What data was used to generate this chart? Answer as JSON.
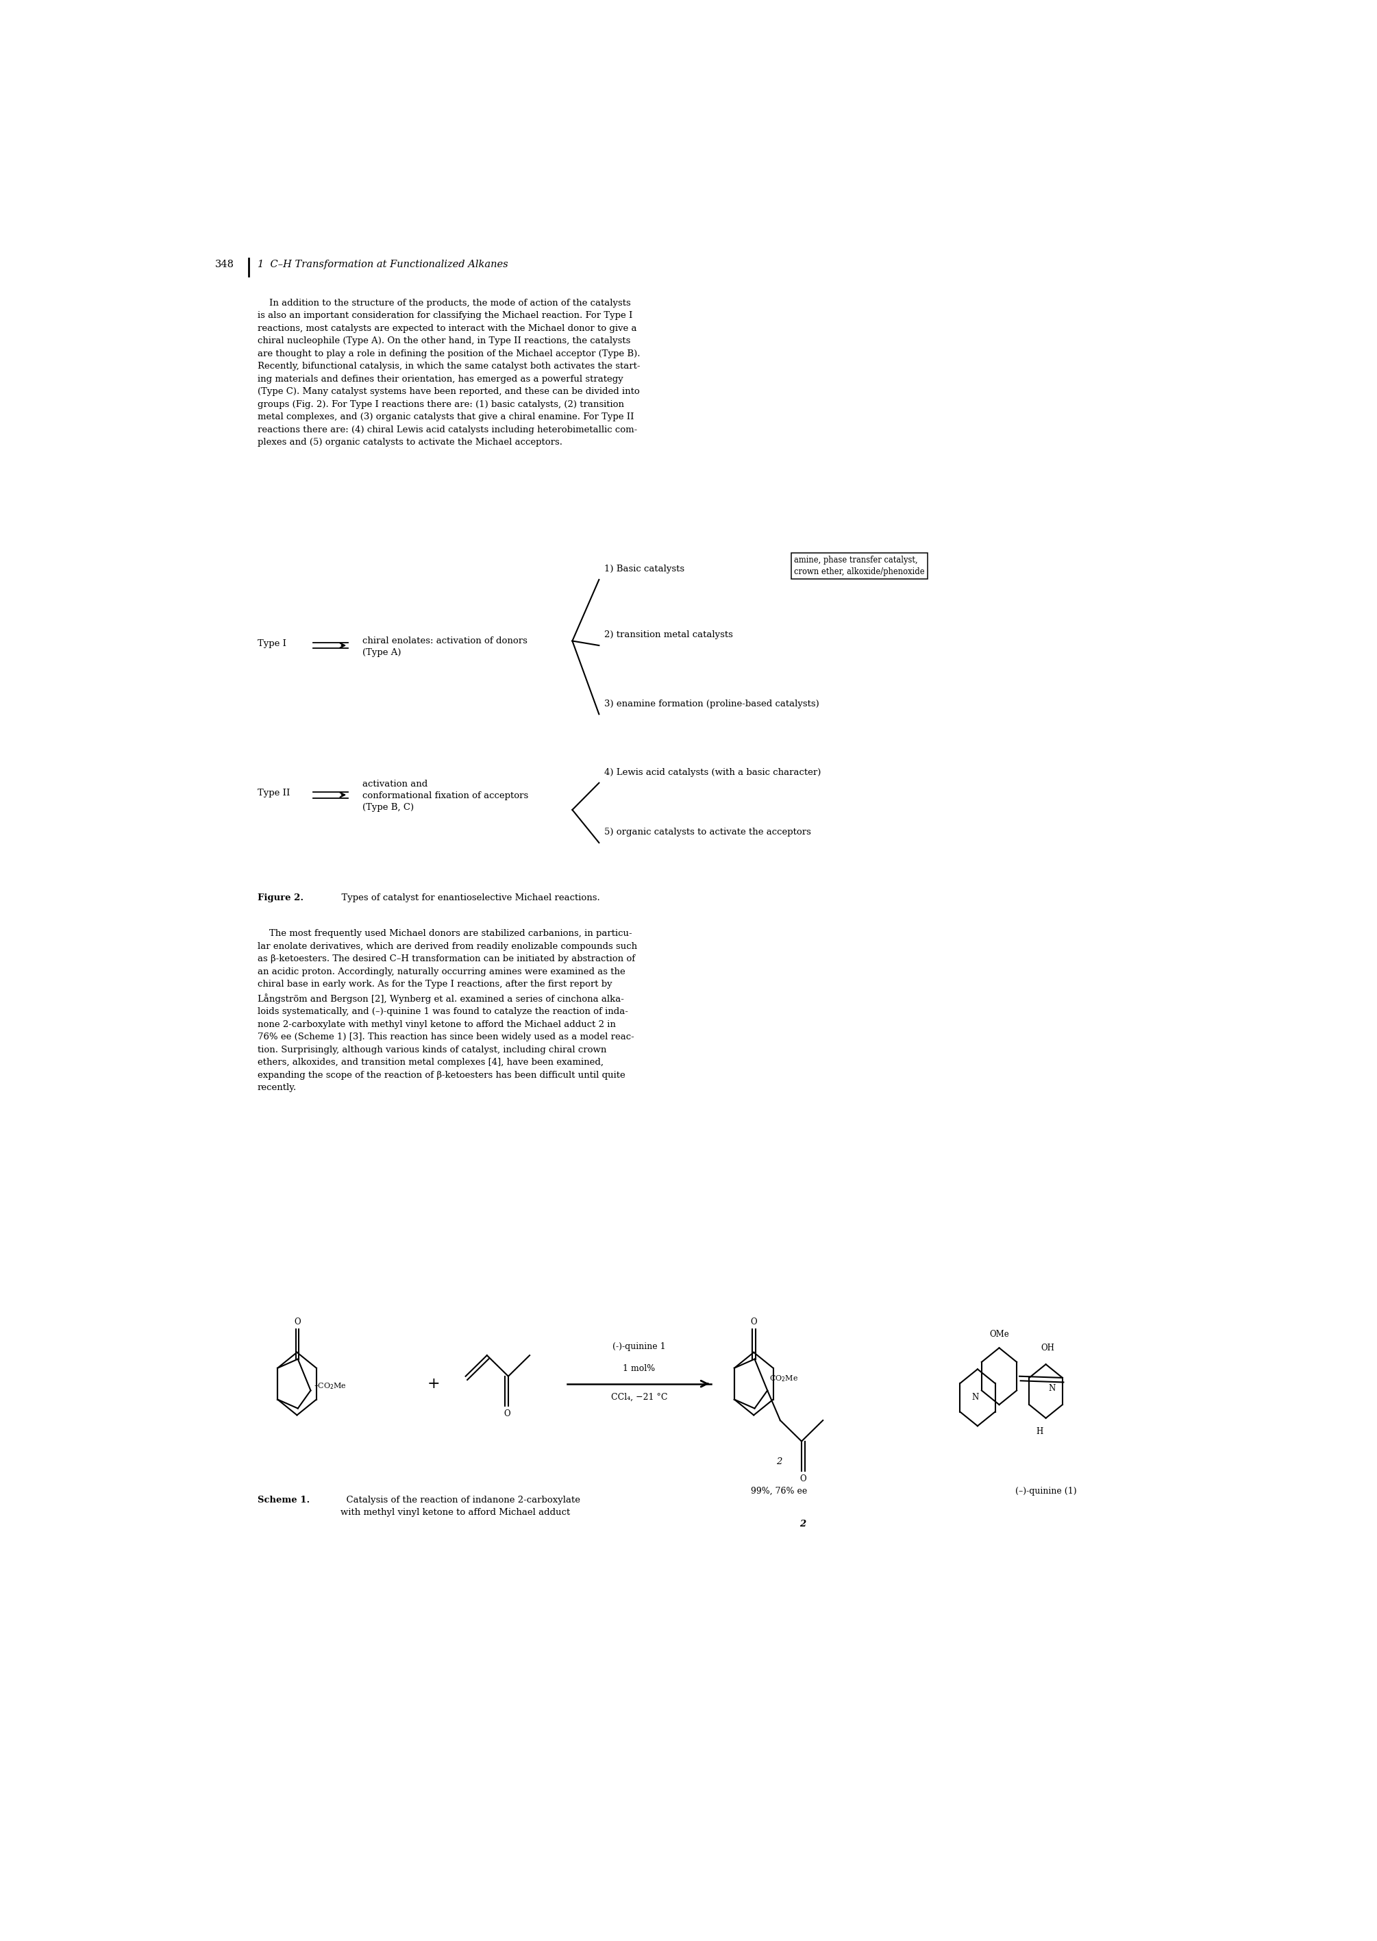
{
  "page_number": "348",
  "header_italic": "1  C–H Transformation at Functionalized Alkanes",
  "p1": "    In addition to the structure of the products, the mode of action of the catalysts\nis also an important consideration for classifying the Michael reaction. For Type I\nreactions, most catalysts are expected to interact with the Michael donor to give a\nchiral nucleophile (Type A). On the other hand, in Type II reactions, the catalysts\nare thought to play a role in defining the position of the Michael acceptor (Type B).\nRecently, bifunctional catalysis, in which the same catalyst both activates the start-\ning materials and defines their orientation, has emerged as a powerful strategy\n(Type C). Many catalyst systems have been reported, and these can be divided into\ngroups (Fig. 2). For Type I reactions there are: (1) basic catalysts, (2) transition\nmetal complexes, and (3) organic catalysts that give a chiral enamine. For Type II\nreactions there are: (4) chiral Lewis acid catalysts including heterobimetallic com-\nplexes and (5) organic catalysts to activate the Michael acceptors.",
  "p2": "    The most frequently used Michael donors are stabilized carbanions, in particu-\nlar enolate derivatives, which are derived from readily enolizable compounds such\nas β-ketoesters. The desired C–H transformation can be initiated by abstraction of\nan acidic proton. Accordingly, naturally occurring amines were examined as the\nchiral base in early work. As for the Type I reactions, after the first report by\nLångström and Bergson [2], Wynberg et al. examined a series of cinchona alka-\nloids systematically, and (–)-quinine 1 was found to catalyze the reaction of inda-\nnone 2-carboxylate with methyl vinyl ketone to afford the Michael adduct 2 in\n76% ee (Scheme 1) [3]. This reaction has since been widely used as a model reac-\ntion. Surprisingly, although various kinds of catalyst, including chiral crown\nethers, alkoxides, and transition metal complexes [4], have been examined,\nexpanding the scope of the reaction of β-ketoesters has been difficult until quite\nrecently.",
  "fig2_caption_bold": "Figure 2.",
  "fig2_caption_rest": "  Types of catalyst for enantioselective Michael reactions.",
  "scheme1_bold": "Scheme 1.",
  "scheme1_rest": "  Catalysis of the reaction of indanone 2-carboxylate\nwith methyl vinyl ketone to afford Michael adduct ",
  "scheme1_italic_end": "2",
  "background_color": "#ffffff",
  "text_color": "#000000",
  "fs": 10.5,
  "fs_small": 9.5
}
